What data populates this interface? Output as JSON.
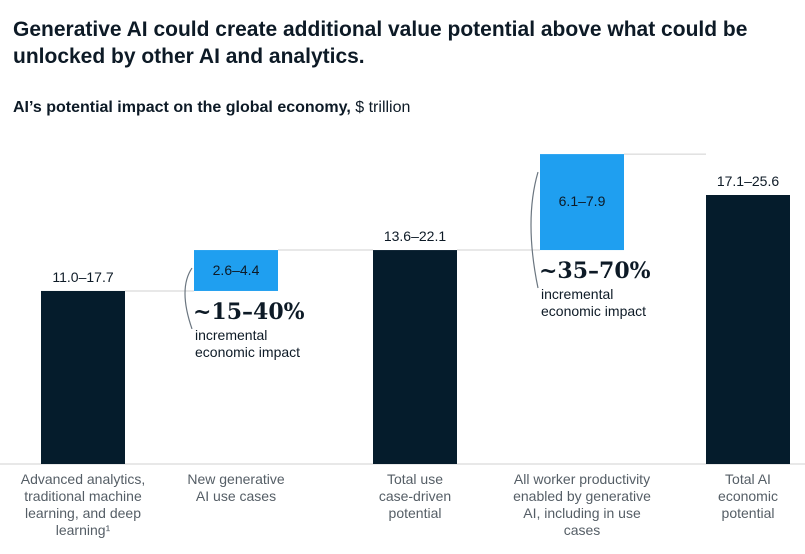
{
  "headline": "Generative AI could create additional value potential above what could be unlocked by other AI and analytics.",
  "subtitle": {
    "bold": "AI’s potential impact on the global economy,",
    "unit": "$ trillion"
  },
  "colors": {
    "dark": "#051c2c",
    "accent": "#1f9ff0",
    "axis": "#d0d0d0",
    "label": "#555e66"
  },
  "chart_data": {
    "type": "bar",
    "subtype": "waterfall",
    "categories": [
      "Advanced analytics, traditional machine learning, and deep learning¹",
      "New generative AI use cases",
      "Total use case-driven potential",
      "All worker productivity enabled by generative AI, including in use cases",
      "Total AI economic potential"
    ],
    "category_lines": [
      [
        "Advanced analytics,",
        "traditional machine",
        "learning, and deep",
        "learning¹"
      ],
      [
        "New generative",
        "AI use cases"
      ],
      [
        "Total use",
        "case-driven",
        "potential"
      ],
      [
        "All worker productivity",
        "enabled by generative",
        "AI, including in use",
        "cases"
      ],
      [
        "Total AI",
        "economic",
        "potential"
      ]
    ],
    "value_labels": [
      "11.0–17.7",
      "2.6–4.4",
      "13.6–22.1",
      "6.1–7.9",
      "17.1–25.6"
    ],
    "values": [
      11.0,
      2.6,
      13.6,
      6.1,
      17.1
    ],
    "bar_kind": [
      "total",
      "increment",
      "total",
      "increment",
      "total"
    ],
    "annotations": [
      {
        "percent": "~15–40%",
        "text_lines": [
          "incremental",
          "economic impact"
        ]
      },
      {
        "percent": "~35–70%",
        "text_lines": [
          "incremental",
          "economic impact"
        ]
      }
    ],
    "ylim": [
      0,
      17.1
    ],
    "xlabel": "",
    "ylabel": "$ trillion",
    "grid": false
  }
}
